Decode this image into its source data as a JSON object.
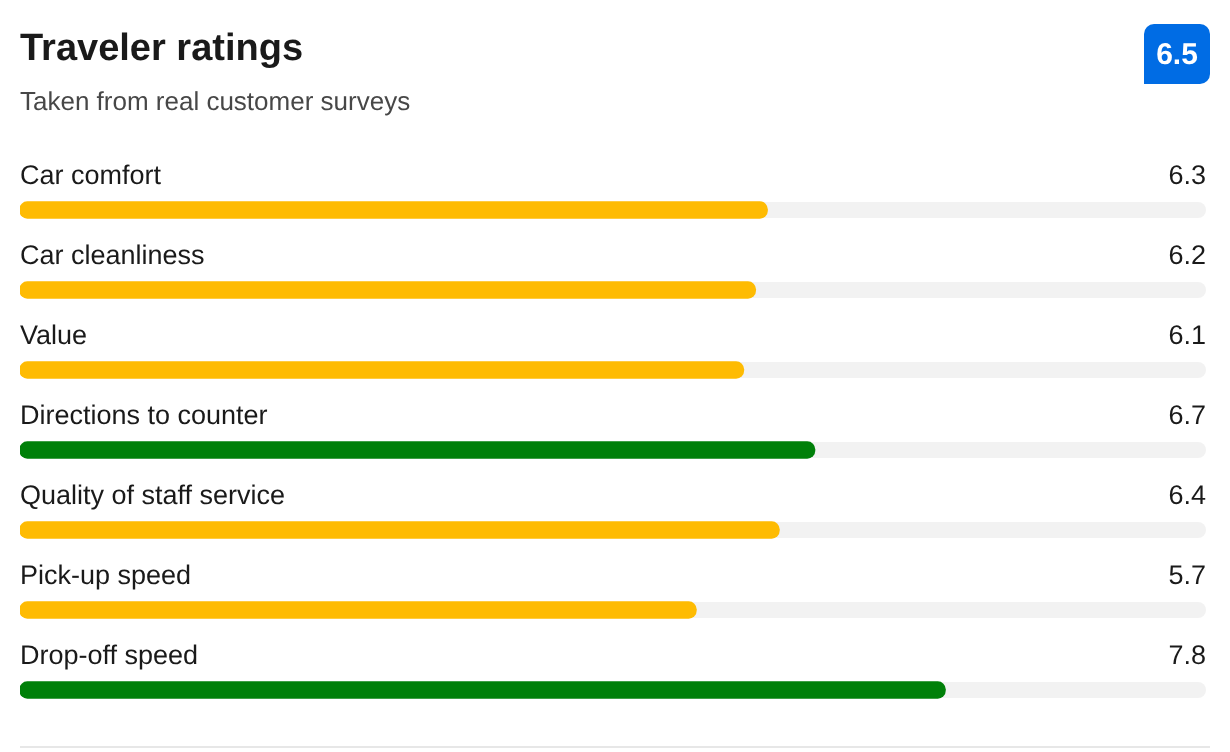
{
  "chart_data": {
    "type": "bar",
    "orientation": "horizontal",
    "title": "Traveler ratings",
    "subtitle": "Taken from real customer surveys",
    "annotations": [
      "6.5"
    ],
    "categories": [
      "Car comfort",
      "Car cleanliness",
      "Value",
      "Directions to counter",
      "Quality of staff service",
      "Pick-up speed",
      "Drop-off speed"
    ],
    "values": [
      6.3,
      6.2,
      6.1,
      6.7,
      6.4,
      5.7,
      7.8
    ],
    "colors": [
      "#febb02",
      "#febb02",
      "#febb02",
      "#008009",
      "#febb02",
      "#febb02",
      "#008009"
    ],
    "xlim": [
      0,
      10
    ],
    "data_labels": true
  }
}
